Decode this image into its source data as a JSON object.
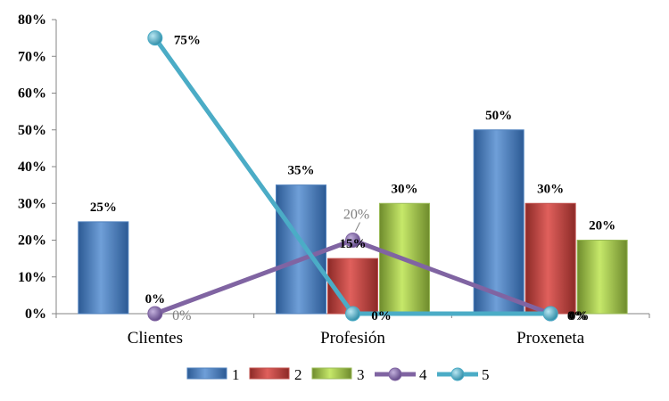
{
  "chart_data": {
    "type": "bar",
    "categories": [
      "Clientes",
      "Profesión",
      "Proxeneta"
    ],
    "ylim": [
      0,
      80
    ],
    "yticks": [
      0,
      10,
      20,
      30,
      40,
      50,
      60,
      70,
      80
    ],
    "ytick_labels": [
      "0%",
      "10%",
      "20%",
      "30%",
      "40%",
      "50%",
      "60%",
      "70%",
      "80%"
    ],
    "grid": false,
    "legend_position": "bottom",
    "series": [
      {
        "name": "1",
        "kind": "bar",
        "color": "#4f81bd",
        "values": [
          25,
          35,
          50
        ],
        "labels": [
          "25%",
          "35%",
          "50%"
        ]
      },
      {
        "name": "2",
        "kind": "bar",
        "color": "#c0504d",
        "values": [
          0,
          15,
          30
        ],
        "labels": [
          "0%",
          "15%",
          "30%"
        ]
      },
      {
        "name": "3",
        "kind": "bar",
        "color": "#9bbb59",
        "values": [
          0,
          30,
          20
        ],
        "labels": [
          "0%",
          "30%",
          "20%"
        ]
      },
      {
        "name": "4",
        "kind": "line",
        "color": "#8064a2",
        "values": [
          0,
          20,
          0
        ],
        "labels": [
          "0%",
          "20%",
          "0%"
        ]
      },
      {
        "name": "5",
        "kind": "line",
        "color": "#4bacc6",
        "values": [
          75,
          0,
          0
        ],
        "labels": [
          "75%",
          "0%",
          "0%"
        ]
      }
    ]
  }
}
